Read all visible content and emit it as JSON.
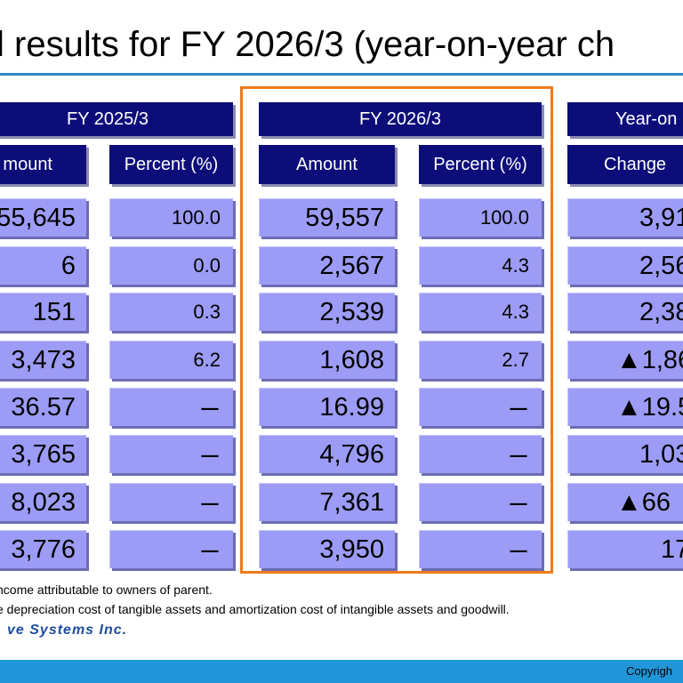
{
  "title": "l results for FY 2026/3 (year-on-year ch",
  "group_headers": [
    "FY 2025/3",
    "FY 2026/3",
    "Year-on"
  ],
  "sub_headers": [
    "mount",
    "Percent (%)",
    "Amount",
    "Percent (%)",
    "Change"
  ],
  "columns": {
    "fy2025_amount": [
      "55,645",
      "6",
      "151",
      "3,473",
      "36.57",
      "3,765",
      "8,023",
      "3,776"
    ],
    "fy2025_percent": [
      "100.0",
      "0.0",
      "0.3",
      "6.2",
      "ー",
      "ー",
      "ー",
      "ー"
    ],
    "fy2026_amount": [
      "59,557",
      "2,567",
      "2,539",
      "1,608",
      "16.99",
      "4,796",
      "7,361",
      "3,950"
    ],
    "fy2026_percent": [
      "100.0",
      "4.3",
      "4.3",
      "2.7",
      "ー",
      "ー",
      "ー",
      "ー"
    ],
    "change": [
      "3,91",
      "2,56",
      "2,38",
      "▲1,86",
      "▲19.5",
      "1,03",
      "▲66",
      "17"
    ]
  },
  "footnotes": [
    "ncome attributable to owners of parent.",
    "e depreciation cost of tangible assets and amortization cost of intangible assets and goodwill."
  ],
  "logo_text": "ve Systems Inc.",
  "copyright": "Copyrigh",
  "colors": {
    "header_bg": "#0d0d7a",
    "cell_bg": "#9c9cf6",
    "highlight_border": "#f07a1a",
    "rule": "#2e86c1",
    "footer_bar": "#2196d8"
  }
}
